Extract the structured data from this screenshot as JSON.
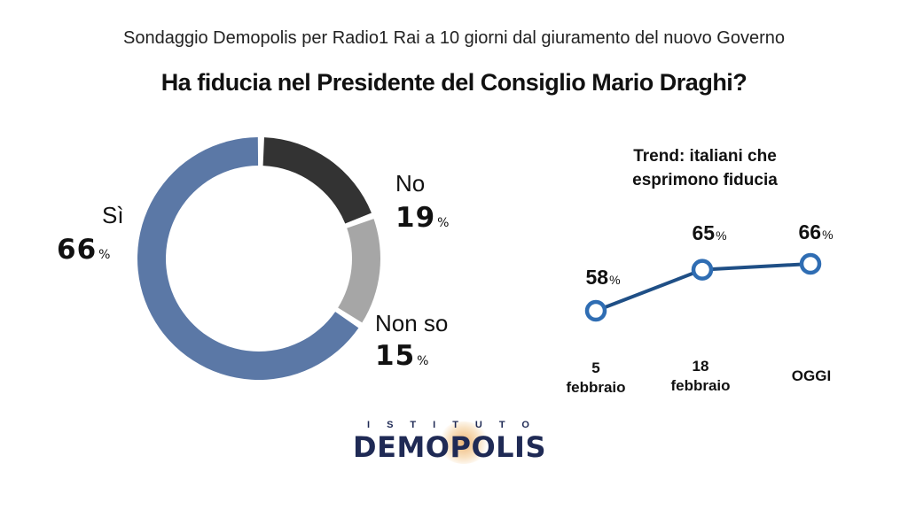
{
  "header": {
    "subtitle": "Sondaggio Demopolis per Radio1 Rai a 10 giorni dal giuramento del nuovo Governo",
    "title": "Ha fiducia nel Presidente del Consiglio Mario Draghi?"
  },
  "chart_data": [
    {
      "type": "pie",
      "style": "donut",
      "slices": [
        {
          "label": "Sì",
          "value": 66,
          "color": "#5b78a6"
        },
        {
          "label": "No",
          "value": 19,
          "color": "#333333"
        },
        {
          "label": "Non so",
          "value": 15,
          "color": "#a6a6a6"
        }
      ],
      "unit": "%"
    },
    {
      "type": "line",
      "title": "Trend: italiani che esprimono fiducia",
      "categories": [
        "5 febbraio",
        "18 febbraio",
        "OGGI"
      ],
      "series": [
        {
          "values": [
            58,
            65,
            66
          ],
          "color": "#1f4f86"
        }
      ],
      "unit": "%"
    }
  ],
  "labels": {
    "pct_symbol": "%",
    "trend_cat_0_line1": "5",
    "trend_cat_0_line2": "febbraio",
    "trend_cat_1_line1": "18",
    "trend_cat_1_line2": "febbraio",
    "trend_cat_2_line1": "OGGI"
  },
  "logo": {
    "top": "ISTITUTO",
    "main": "DEMOPOLIS"
  }
}
